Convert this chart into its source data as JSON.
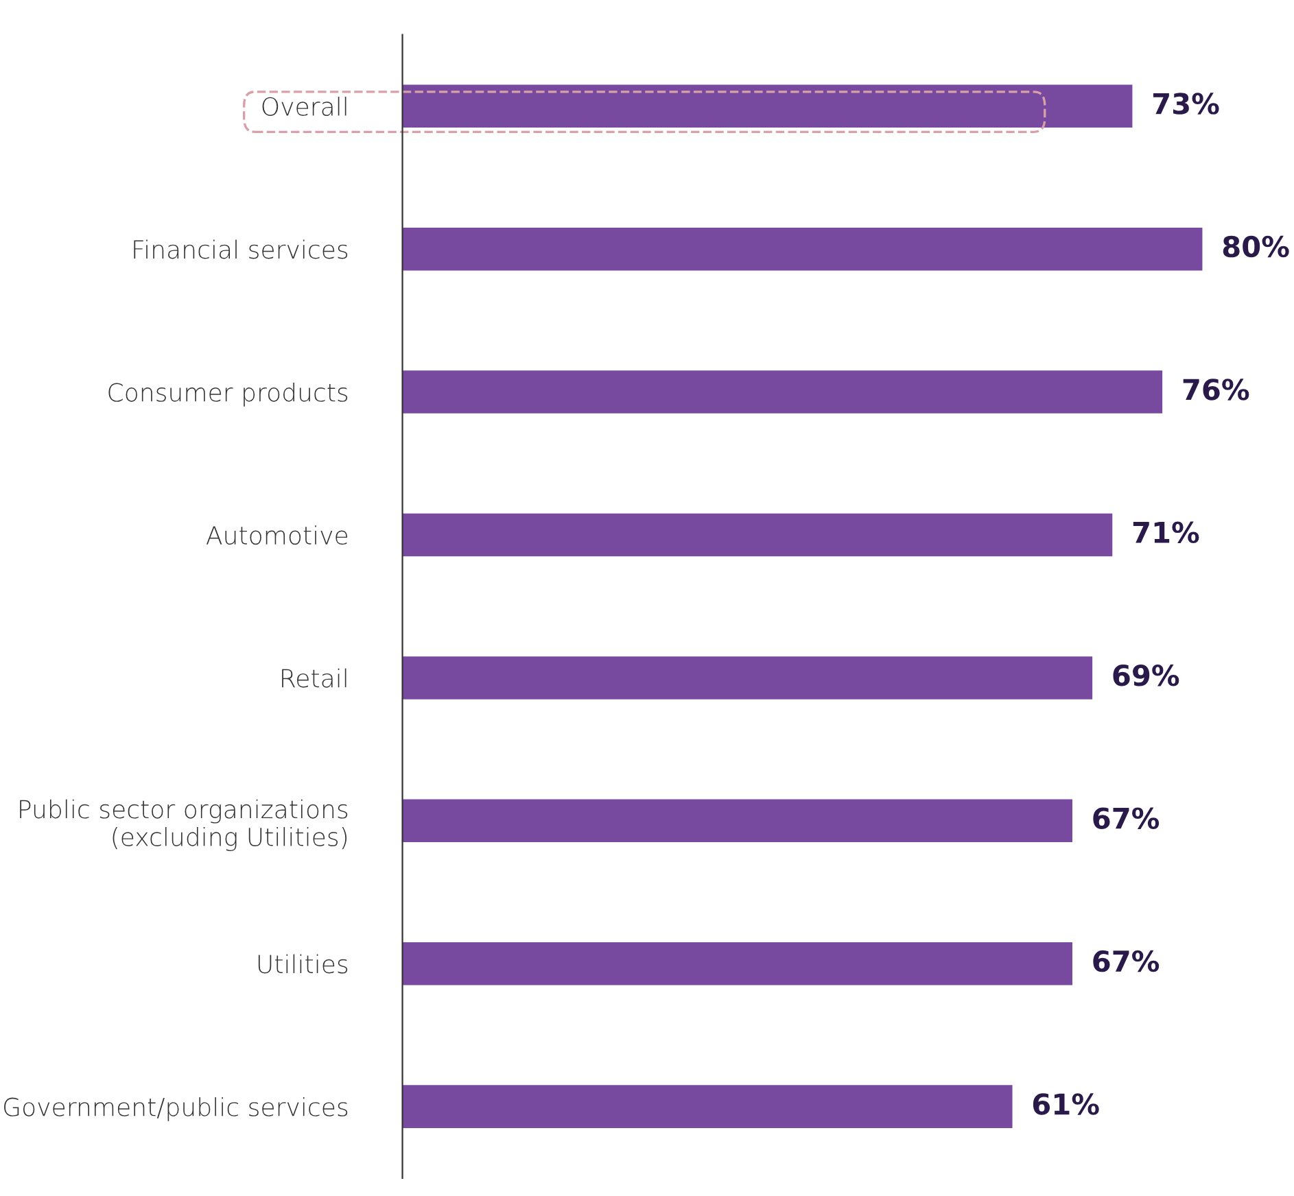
{
  "chart_data": {
    "type": "bar",
    "orientation": "horizontal",
    "categories": [
      "Overall",
      "Financial services",
      "Consumer products",
      "Automotive",
      "Retail",
      "Public sector organizations\n(excluding Utilities)",
      "Utilities",
      "Government/public services"
    ],
    "values": [
      73,
      80,
      76,
      71,
      69,
      67,
      67,
      61
    ],
    "color": "#774aa0",
    "value_labels": [
      "73%",
      "80%",
      "76%",
      "71%",
      "69%",
      "67%",
      "67%",
      "61%"
    ],
    "tick_labels": "y",
    "grid": false,
    "legend": false
  }
}
